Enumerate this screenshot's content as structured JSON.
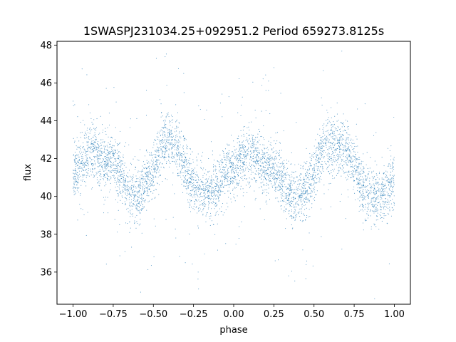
{
  "chart_data": {
    "type": "scatter",
    "title": "1SWASPJ231034.25+092951.2 Period 659273.8125s",
    "xlabel": "phase",
    "ylabel": "flux",
    "xlim": [
      -1.1,
      1.1
    ],
    "ylim": [
      34.3,
      48.2
    ],
    "xticks": [
      -1.0,
      -0.75,
      -0.5,
      -0.25,
      0.0,
      0.25,
      0.5,
      0.75,
      1.0
    ],
    "xtick_labels": [
      "−1.00",
      "−0.75",
      "−0.50",
      "−0.25",
      "0.00",
      "0.25",
      "0.50",
      "0.75",
      "1.00"
    ],
    "yticks": [
      36,
      38,
      40,
      42,
      44,
      46,
      48
    ],
    "ytick_labels": [
      "36",
      "38",
      "40",
      "42",
      "44",
      "46",
      "48"
    ],
    "grid": false,
    "series": [
      {
        "color": "#1f77b4",
        "marker_size": 1,
        "description_points": [
          [
            -1.0,
            41.0
          ],
          [
            -0.95,
            41.8
          ],
          [
            -0.9,
            42.3
          ],
          [
            -0.85,
            42.2
          ],
          [
            -0.8,
            41.8
          ],
          [
            -0.75,
            41.9
          ],
          [
            -0.7,
            41.3
          ],
          [
            -0.65,
            40.2
          ],
          [
            -0.6,
            40.1
          ],
          [
            -0.55,
            40.6
          ],
          [
            -0.5,
            41.4
          ],
          [
            -0.45,
            42.6
          ],
          [
            -0.4,
            42.9
          ],
          [
            -0.35,
            42.6
          ],
          [
            -0.3,
            41.5
          ],
          [
            -0.25,
            40.6
          ],
          [
            -0.2,
            40.3
          ],
          [
            -0.15,
            40.0
          ],
          [
            -0.1,
            40.4
          ],
          [
            -0.05,
            41.3
          ],
          [
            0.0,
            41.5
          ],
          [
            0.05,
            42.0
          ],
          [
            0.1,
            42.2
          ],
          [
            0.15,
            42.0
          ],
          [
            0.2,
            41.4
          ],
          [
            0.25,
            41.5
          ],
          [
            0.3,
            40.9
          ],
          [
            0.35,
            40.0
          ],
          [
            0.4,
            39.9
          ],
          [
            0.45,
            40.4
          ],
          [
            0.5,
            41.1
          ],
          [
            0.55,
            42.5
          ],
          [
            0.6,
            42.7
          ],
          [
            0.65,
            42.7
          ],
          [
            0.7,
            42.4
          ],
          [
            0.75,
            41.8
          ],
          [
            0.8,
            40.4
          ],
          [
            0.85,
            40.1
          ],
          [
            0.9,
            40.0
          ],
          [
            0.95,
            40.4
          ],
          [
            1.0,
            41.0
          ]
        ]
      }
    ]
  }
}
